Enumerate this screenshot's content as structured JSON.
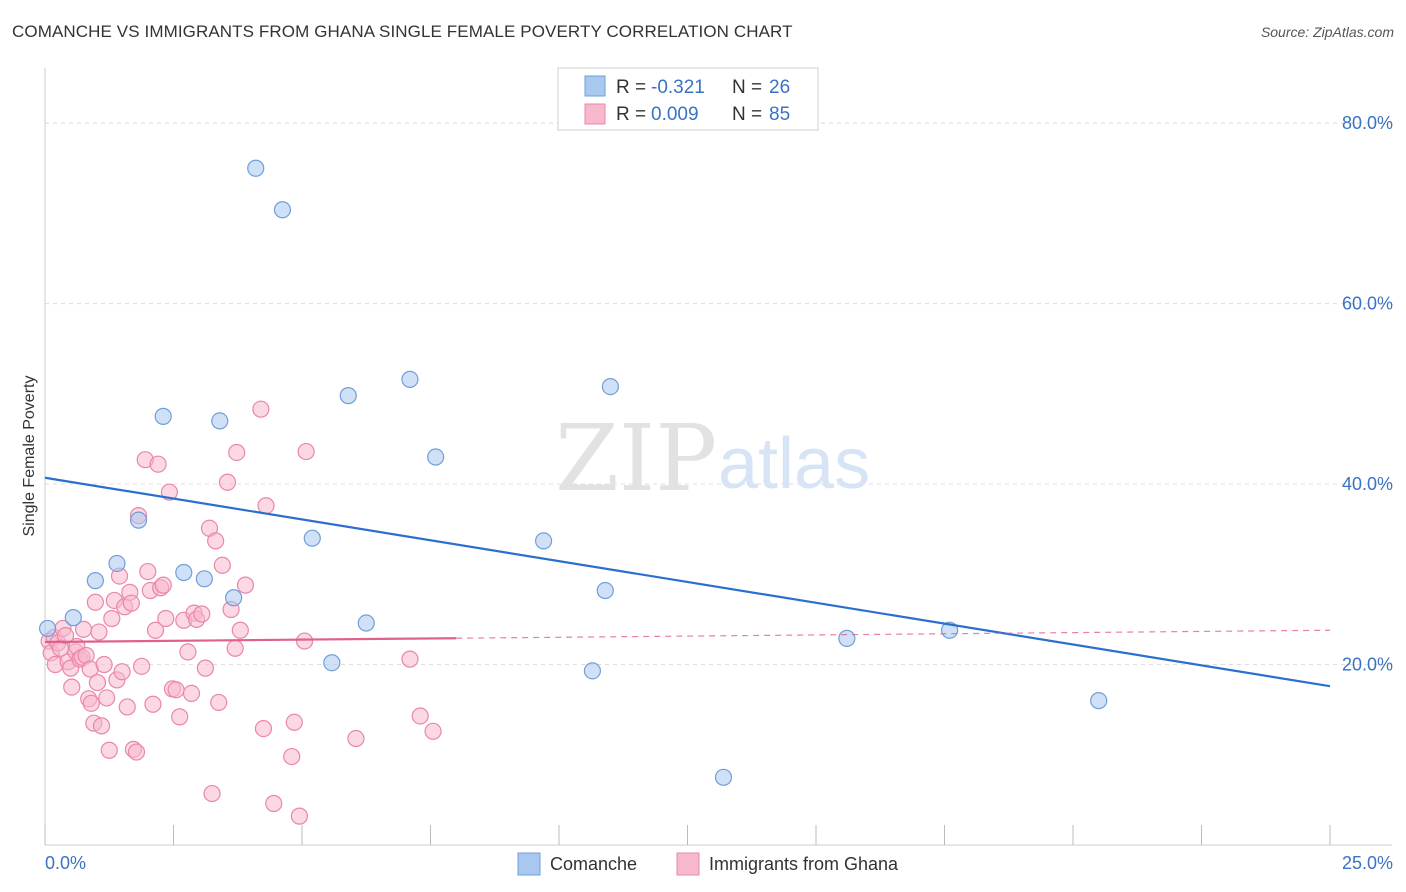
{
  "header": {
    "title": "COMANCHE VS IMMIGRANTS FROM GHANA SINGLE FEMALE POVERTY CORRELATION CHART",
    "source": "Source: ZipAtlas.com"
  },
  "watermark": {
    "zip": "ZIP",
    "atlas": "atlas"
  },
  "legend": {
    "series": [
      {
        "name": "Comanche",
        "r_label": "R =",
        "r_value": "-0.321",
        "n_label": "N =",
        "n_value": "26",
        "color": "#a9c8f0",
        "edge": "#6f9fd8"
      },
      {
        "name": "Immigrants from Ghana",
        "r_label": "R =",
        "r_value": "0.009",
        "n_label": "N =",
        "n_value": "85",
        "color": "#f7b8cc",
        "edge": "#e987a8"
      }
    ]
  },
  "chart_data": {
    "type": "scatter",
    "title": "COMANCHE VS IMMIGRANTS FROM GHANA SINGLE FEMALE POVERTY CORRELATION CHART",
    "xlabel": "",
    "ylabel": "Single Female Poverty",
    "xlim": [
      0,
      25
    ],
    "ylim": [
      0,
      85
    ],
    "x_tick_labels": {
      "min": "0.0%",
      "max": "25.0%"
    },
    "x_ticks": [
      0,
      2.5,
      5,
      7.5,
      10,
      12.5,
      15,
      17.5,
      20,
      22.5,
      25
    ],
    "y_ticks": [
      {
        "value": 20,
        "label": "20.0%"
      },
      {
        "value": 40,
        "label": "40.0%"
      },
      {
        "value": 60,
        "label": "60.0%"
      },
      {
        "value": 80,
        "label": "80.0%"
      }
    ],
    "grid": true,
    "series": [
      {
        "name": "Comanche",
        "color": "#a9c8f0",
        "edge": "#6f9fd8",
        "line_color": "#2b6fce",
        "trend": {
          "x0": 0,
          "y0": 40.7,
          "x1": 25,
          "y1": 17.6,
          "dashed_from": null
        },
        "points": [
          [
            0.05,
            24.0
          ],
          [
            0.55,
            25.2
          ],
          [
            0.98,
            29.3
          ],
          [
            1.4,
            31.2
          ],
          [
            1.82,
            36.0
          ],
          [
            2.3,
            47.5
          ],
          [
            2.7,
            30.2
          ],
          [
            3.1,
            29.5
          ],
          [
            3.4,
            47.0
          ],
          [
            3.67,
            27.4
          ],
          [
            4.1,
            75.0
          ],
          [
            4.62,
            70.4
          ],
          [
            5.2,
            34.0
          ],
          [
            5.58,
            20.2
          ],
          [
            5.9,
            49.8
          ],
          [
            6.25,
            24.6
          ],
          [
            7.1,
            51.6
          ],
          [
            7.6,
            43.0
          ],
          [
            9.7,
            33.7
          ],
          [
            10.65,
            19.3
          ],
          [
            10.9,
            28.2
          ],
          [
            11.0,
            50.8
          ],
          [
            13.2,
            7.5
          ],
          [
            15.6,
            22.9
          ],
          [
            17.6,
            23.8
          ],
          [
            20.5,
            16.0
          ]
        ]
      },
      {
        "name": "Immigrants from Ghana",
        "color": "#f7b8cc",
        "edge": "#e987a8",
        "line_color": "#e0608d",
        "trend": {
          "x0": 0,
          "y0": 22.5,
          "x1": 25,
          "y1": 23.8,
          "dashed_from": 8.0
        },
        "points": [
          [
            0.08,
            22.6
          ],
          [
            0.12,
            21.3
          ],
          [
            0.18,
            23.0
          ],
          [
            0.2,
            20.0
          ],
          [
            0.25,
            22.4
          ],
          [
            0.3,
            21.8
          ],
          [
            0.35,
            24.0
          ],
          [
            0.4,
            23.2
          ],
          [
            0.45,
            20.3
          ],
          [
            0.5,
            19.6
          ],
          [
            0.52,
            17.5
          ],
          [
            0.6,
            21.4
          ],
          [
            0.62,
            22.0
          ],
          [
            0.68,
            20.6
          ],
          [
            0.72,
            20.8
          ],
          [
            0.75,
            23.9
          ],
          [
            0.8,
            21.0
          ],
          [
            0.85,
            16.2
          ],
          [
            0.88,
            19.5
          ],
          [
            0.9,
            15.7
          ],
          [
            0.95,
            13.5
          ],
          [
            0.98,
            26.9
          ],
          [
            1.02,
            18.0
          ],
          [
            1.05,
            23.6
          ],
          [
            1.1,
            13.2
          ],
          [
            1.15,
            20.0
          ],
          [
            1.2,
            16.3
          ],
          [
            1.25,
            10.5
          ],
          [
            1.3,
            25.1
          ],
          [
            1.35,
            27.1
          ],
          [
            1.4,
            18.3
          ],
          [
            1.45,
            29.8
          ],
          [
            1.5,
            19.2
          ],
          [
            1.55,
            26.4
          ],
          [
            1.6,
            15.3
          ],
          [
            1.65,
            28.0
          ],
          [
            1.68,
            26.8
          ],
          [
            1.72,
            10.6
          ],
          [
            1.78,
            10.3
          ],
          [
            1.82,
            36.5
          ],
          [
            1.88,
            19.8
          ],
          [
            1.95,
            42.7
          ],
          [
            2.0,
            30.3
          ],
          [
            2.05,
            28.2
          ],
          [
            2.1,
            15.6
          ],
          [
            2.15,
            23.8
          ],
          [
            2.2,
            42.2
          ],
          [
            2.25,
            28.5
          ],
          [
            2.3,
            28.8
          ],
          [
            2.35,
            25.1
          ],
          [
            2.42,
            39.1
          ],
          [
            2.48,
            17.3
          ],
          [
            2.55,
            17.2
          ],
          [
            2.62,
            14.2
          ],
          [
            2.7,
            24.9
          ],
          [
            2.78,
            21.4
          ],
          [
            2.85,
            16.8
          ],
          [
            2.9,
            25.7
          ],
          [
            2.95,
            25.0
          ],
          [
            3.05,
            25.6
          ],
          [
            3.12,
            19.6
          ],
          [
            3.2,
            35.1
          ],
          [
            3.25,
            5.7
          ],
          [
            3.32,
            33.7
          ],
          [
            3.38,
            15.8
          ],
          [
            3.45,
            31.0
          ],
          [
            3.55,
            40.2
          ],
          [
            3.62,
            26.1
          ],
          [
            3.7,
            21.8
          ],
          [
            3.73,
            43.5
          ],
          [
            3.8,
            23.8
          ],
          [
            3.9,
            28.8
          ],
          [
            4.2,
            48.3
          ],
          [
            4.25,
            12.9
          ],
          [
            4.3,
            37.6
          ],
          [
            4.45,
            4.6
          ],
          [
            4.8,
            9.8
          ],
          [
            4.85,
            13.6
          ],
          [
            4.95,
            3.2
          ],
          [
            5.05,
            22.6
          ],
          [
            5.08,
            43.6
          ],
          [
            6.05,
            11.8
          ],
          [
            7.1,
            20.6
          ],
          [
            7.3,
            14.3
          ],
          [
            7.55,
            12.6
          ]
        ]
      }
    ]
  }
}
